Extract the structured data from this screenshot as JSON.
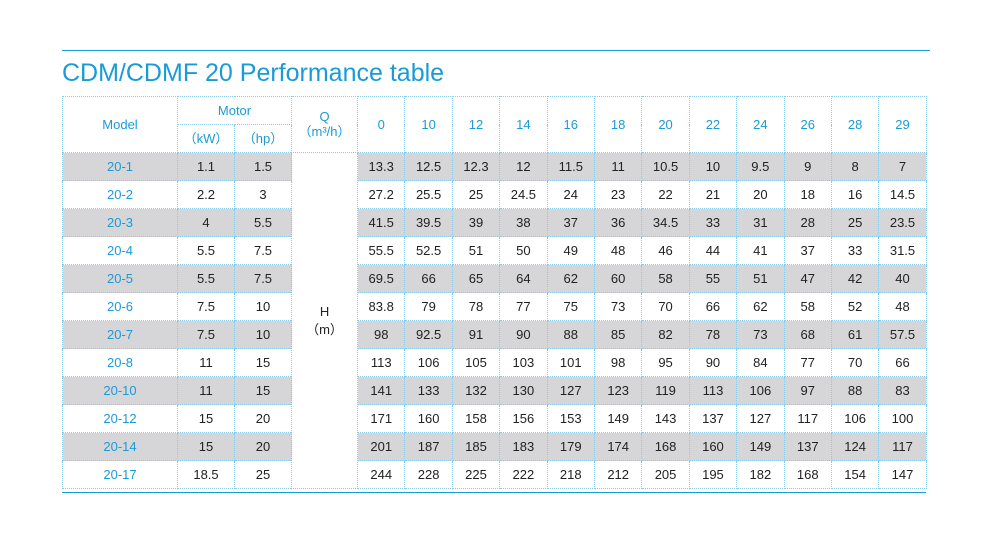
{
  "title": "CDM/CDMF 20 Performance table",
  "colors": {
    "accent": "#1a9bd7",
    "row_shade": "#d6d6d8",
    "grid": "#8ccbe8"
  },
  "header": {
    "model": "Model",
    "motor": "Motor",
    "kw": "（kW）",
    "hp": "（hp）",
    "q_label": "Q",
    "q_unit": "（m³/h）",
    "flows": [
      "0",
      "10",
      "12",
      "14",
      "16",
      "18",
      "20",
      "22",
      "24",
      "26",
      "28",
      "29"
    ]
  },
  "h_label": "H",
  "h_unit": "（m）",
  "rows": [
    {
      "model": "20-1",
      "kw": "1.1",
      "hp": "1.5",
      "values": [
        "13.3",
        "12.5",
        "12.3",
        "12",
        "11.5",
        "11",
        "10.5",
        "10",
        "9.5",
        "9",
        "8",
        "7"
      ]
    },
    {
      "model": "20-2",
      "kw": "2.2",
      "hp": "3",
      "values": [
        "27.2",
        "25.5",
        "25",
        "24.5",
        "24",
        "23",
        "22",
        "21",
        "20",
        "18",
        "16",
        "14.5"
      ]
    },
    {
      "model": "20-3",
      "kw": "4",
      "hp": "5.5",
      "values": [
        "41.5",
        "39.5",
        "39",
        "38",
        "37",
        "36",
        "34.5",
        "33",
        "31",
        "28",
        "25",
        "23.5"
      ]
    },
    {
      "model": "20-4",
      "kw": "5.5",
      "hp": "7.5",
      "values": [
        "55.5",
        "52.5",
        "51",
        "50",
        "49",
        "48",
        "46",
        "44",
        "41",
        "37",
        "33",
        "31.5"
      ]
    },
    {
      "model": "20-5",
      "kw": "5.5",
      "hp": "7.5",
      "values": [
        "69.5",
        "66",
        "65",
        "64",
        "62",
        "60",
        "58",
        "55",
        "51",
        "47",
        "42",
        "40"
      ]
    },
    {
      "model": "20-6",
      "kw": "7.5",
      "hp": "10",
      "values": [
        "83.8",
        "79",
        "78",
        "77",
        "75",
        "73",
        "70",
        "66",
        "62",
        "58",
        "52",
        "48"
      ]
    },
    {
      "model": "20-7",
      "kw": "7.5",
      "hp": "10",
      "values": [
        "98",
        "92.5",
        "91",
        "90",
        "88",
        "85",
        "82",
        "78",
        "73",
        "68",
        "61",
        "57.5"
      ]
    },
    {
      "model": "20-8",
      "kw": "11",
      "hp": "15",
      "values": [
        "113",
        "106",
        "105",
        "103",
        "101",
        "98",
        "95",
        "90",
        "84",
        "77",
        "70",
        "66"
      ]
    },
    {
      "model": "20-10",
      "kw": "11",
      "hp": "15",
      "values": [
        "141",
        "133",
        "132",
        "130",
        "127",
        "123",
        "119",
        "113",
        "106",
        "97",
        "88",
        "83"
      ]
    },
    {
      "model": "20-12",
      "kw": "15",
      "hp": "20",
      "values": [
        "171",
        "160",
        "158",
        "156",
        "153",
        "149",
        "143",
        "137",
        "127",
        "117",
        "106",
        "100"
      ]
    },
    {
      "model": "20-14",
      "kw": "15",
      "hp": "20",
      "values": [
        "201",
        "187",
        "185",
        "183",
        "179",
        "174",
        "168",
        "160",
        "149",
        "137",
        "124",
        "117"
      ]
    },
    {
      "model": "20-17",
      "kw": "18.5",
      "hp": "25",
      "values": [
        "244",
        "228",
        "225",
        "222",
        "218",
        "212",
        "205",
        "195",
        "182",
        "168",
        "154",
        "147"
      ]
    }
  ]
}
